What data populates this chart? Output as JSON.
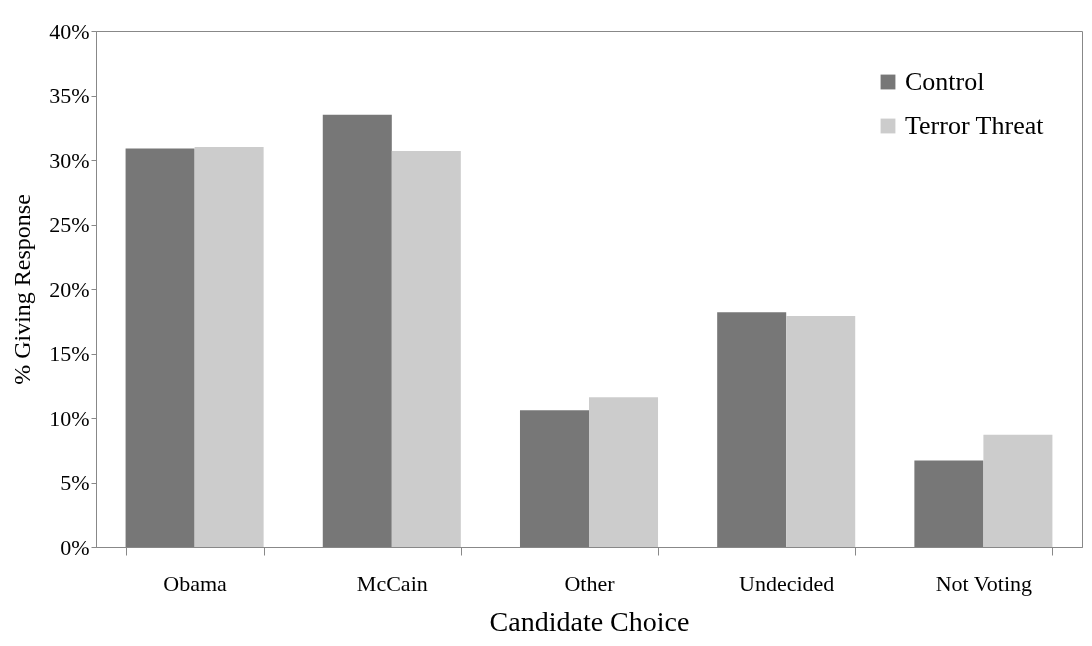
{
  "chart_data": {
    "type": "bar",
    "xlabel": "Candidate Choice",
    "ylabel": "% Giving Response",
    "categories": [
      "Obama",
      "McCain",
      "Other",
      "Undecided",
      "Not Voting"
    ],
    "series": [
      {
        "name": "Control",
        "color": "#777777",
        "values": [
          30.9,
          33.5,
          10.6,
          18.2,
          6.7
        ]
      },
      {
        "name": "Terror Threat",
        "color": "#cccccc",
        "values": [
          31,
          30.7,
          11.6,
          17.9,
          8.7
        ]
      }
    ],
    "ylim": [
      0,
      40
    ],
    "yticks": [
      {
        "value": 0,
        "label": "0%"
      },
      {
        "value": 5,
        "label": "5%"
      },
      {
        "value": 10,
        "label": "10%"
      },
      {
        "value": 15,
        "label": "15%"
      },
      {
        "value": 20,
        "label": "20%"
      },
      {
        "value": 25,
        "label": "25%"
      },
      {
        "value": 30,
        "label": "30%"
      },
      {
        "value": 35,
        "label": "35%"
      },
      {
        "value": 40,
        "label": "40%"
      }
    ],
    "grid": false,
    "legend": "top right"
  }
}
